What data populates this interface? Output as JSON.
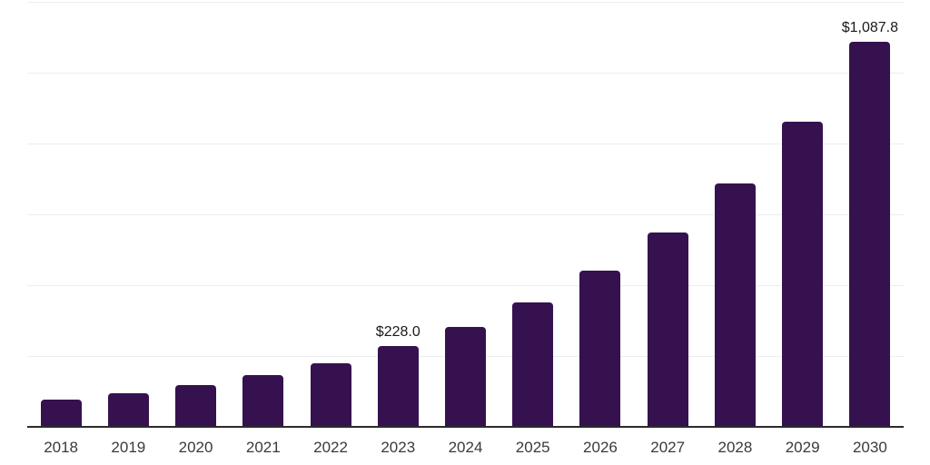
{
  "chart_data": {
    "type": "bar",
    "title": "",
    "xlabel": "",
    "ylabel": "",
    "categories": [
      "2018",
      "2019",
      "2020",
      "2021",
      "2022",
      "2023",
      "2024",
      "2025",
      "2026",
      "2027",
      "2028",
      "2029",
      "2030"
    ],
    "values": [
      77,
      96,
      119,
      147,
      180,
      228.0,
      283,
      352,
      441,
      550,
      687,
      862,
      1087.8
    ],
    "annotations": [
      {
        "category": "2023",
        "label": "$228.0"
      },
      {
        "category": "2030",
        "label": "$1,087.8"
      }
    ],
    "ylim": [
      0,
      1200
    ],
    "gridline_step": 200,
    "grid": "horizontal-only",
    "legend": "none",
    "y_axis_tick_labels": "none",
    "colors": {
      "bar": "#36114F",
      "gridline": "#ededed",
      "axis_line": "#2b2b2b",
      "tick_label": "#3a3a3a",
      "data_label": "#1a1a1a",
      "background": "#ffffff"
    }
  }
}
